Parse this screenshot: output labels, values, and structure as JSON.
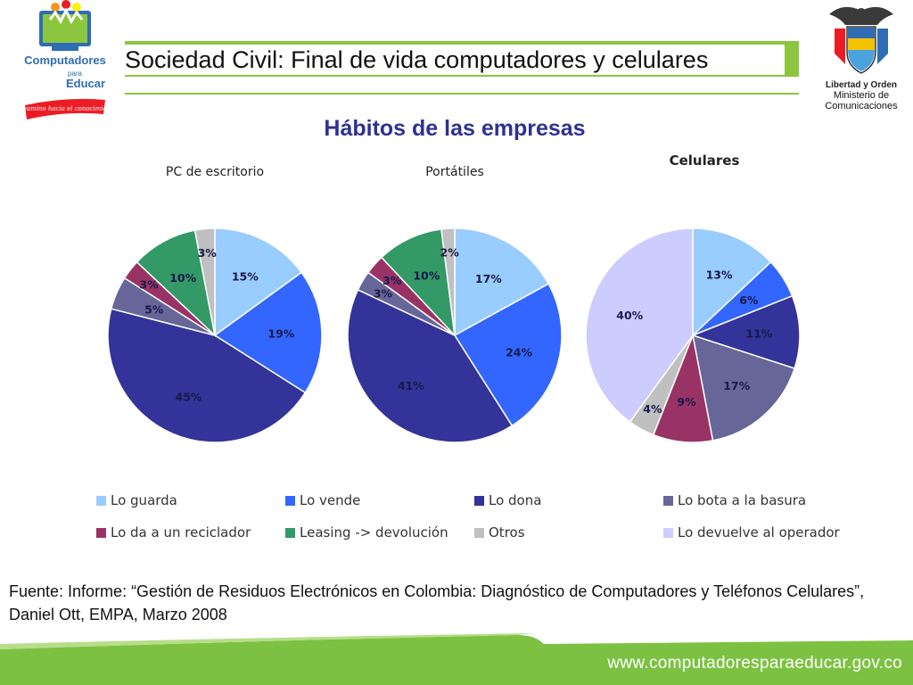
{
  "header": {
    "logo_left_lines": [
      "Computadores",
      "para",
      "Educar"
    ],
    "logo_left_tagline": "un camino hacia el conocimiento",
    "logo_right_motto": "Libertad y Orden",
    "logo_right_ministry": [
      "Ministerio de",
      "Comunicaciones"
    ]
  },
  "title": "Sociedad Civil: Final de vida computadores y celulares",
  "subtitle": "Hábitos de las empresas",
  "colors": {
    "accent_green": "#8cc63f",
    "subtitle_blue": "#2e3192",
    "footer_green": "#7dc142"
  },
  "legend": [
    {
      "label": "Lo guarda",
      "color": "#99ccff"
    },
    {
      "label": "Lo vende",
      "color": "#3366ff"
    },
    {
      "label": "Lo dona",
      "color": "#333399"
    },
    {
      "label": "Lo bota a la basura",
      "color": "#666699"
    },
    {
      "label": "Lo da a un reciclador",
      "color": "#993366"
    },
    {
      "label": "Leasing -> devolución",
      "color": "#339966"
    },
    {
      "label": "Otros",
      "color": "#c0c0c0"
    },
    {
      "label": "Lo devuelve al operador",
      "color": "#ccccff"
    }
  ],
  "chart_data": [
    {
      "type": "pie",
      "title": "PC de escritorio",
      "categories": [
        "Lo guarda",
        "Lo vende",
        "Lo dona",
        "Lo bota a la basura",
        "Lo da a un reciclador",
        "Leasing -> devolución",
        "Otros"
      ],
      "values": [
        15,
        19,
        45,
        5,
        3,
        10,
        3
      ],
      "labels": [
        "15%",
        "19%",
        "45%",
        "5%",
        "3%",
        "10%",
        "3%"
      ],
      "colors": [
        "#99ccff",
        "#3366ff",
        "#333399",
        "#666699",
        "#993366",
        "#339966",
        "#c0c0c0"
      ]
    },
    {
      "type": "pie",
      "title": "Portátiles",
      "categories": [
        "Lo guarda",
        "Lo vende",
        "Lo dona",
        "Lo bota a la basura",
        "Lo da a un reciclador",
        "Leasing -> devolución",
        "Otros"
      ],
      "values": [
        17,
        24,
        41,
        3,
        3,
        10,
        2
      ],
      "labels": [
        "17%",
        "24%",
        "41%",
        "3%",
        "3%",
        "10%",
        "2%"
      ],
      "colors": [
        "#99ccff",
        "#3366ff",
        "#333399",
        "#666699",
        "#993366",
        "#339966",
        "#c0c0c0"
      ]
    },
    {
      "type": "pie",
      "title": "Celulares",
      "categories": [
        "Lo guarda",
        "Lo vende",
        "Lo dona",
        "Lo bota a la basura",
        "Lo da a un reciclador",
        "Otros",
        "Lo devuelve al operador"
      ],
      "values": [
        13,
        6,
        11,
        17,
        9,
        4,
        40
      ],
      "labels": [
        "13%",
        "6%",
        "11%",
        "17%",
        "9%",
        "4%",
        "40%"
      ],
      "colors": [
        "#99ccff",
        "#3366ff",
        "#333399",
        "#666699",
        "#993366",
        "#c0c0c0",
        "#ccccff"
      ]
    }
  ],
  "source": "Fuente: Informe: “Gestión de Residuos Electrónicos en Colombia: Diagnóstico de Computadores y Teléfonos Celulares”, Daniel Ott, EMPA, Marzo 2008",
  "footer_url": "www.computadoresparaeducar.gov.co"
}
